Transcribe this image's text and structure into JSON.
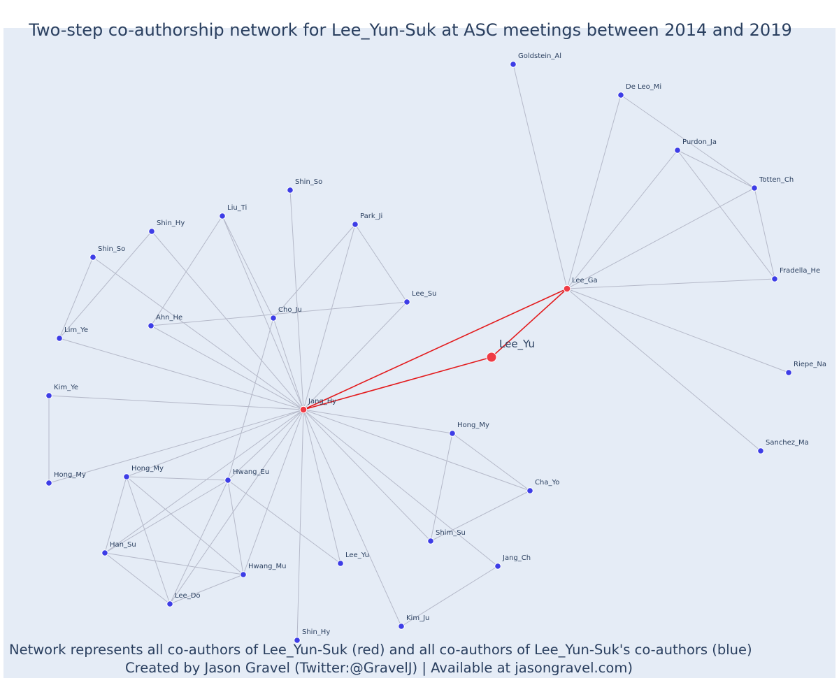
{
  "title": "Two-step co-authorship network for Lee_Yun-Suk at ASC meetings between 2014 and 2019",
  "footer": {
    "line1": "Network represents all co-authors of Lee_Yun-Suk (red) and all co-authors of Lee_Yun-Suk's co-authors (blue)",
    "line2": "Created by Jason Gravel (Twitter:@GravelJ) | Available at jasongravel.com)"
  },
  "colors": {
    "plot_background": "#e5ecf6",
    "text": "#2a3f5f",
    "first_degree_node": "#ef3b45",
    "second_degree_node": "#3d3de6",
    "ego_edge": "#e31a1c",
    "edge": "#b5b9c9"
  },
  "nodes": [
    {
      "id": "center",
      "label": "Lee_Yu",
      "kind": "center"
    },
    {
      "id": "jang_hy",
      "label": "Jang_Hy",
      "kind": "first"
    },
    {
      "id": "lee_ga",
      "label": "Lee_Ga",
      "kind": "first"
    },
    {
      "id": "goldstein_al",
      "label": "Goldstein_Al",
      "kind": "second"
    },
    {
      "id": "deleo_mi",
      "label": "De Leo_Mi",
      "kind": "second"
    },
    {
      "id": "purdon_ja",
      "label": "Purdon_Ja",
      "kind": "second"
    },
    {
      "id": "totten_ch",
      "label": "Totten_Ch",
      "kind": "second"
    },
    {
      "id": "fradella_he",
      "label": "Fradella_He",
      "kind": "second"
    },
    {
      "id": "riepe_na",
      "label": "Riepe_Na",
      "kind": "second"
    },
    {
      "id": "sanchez_ma",
      "label": "Sanchez_Ma",
      "kind": "second"
    },
    {
      "id": "shin_so_top",
      "label": "Shin_So",
      "kind": "second"
    },
    {
      "id": "liu_ti",
      "label": "Liu_Ti",
      "kind": "second"
    },
    {
      "id": "park_ji",
      "label": "Park_Ji",
      "kind": "second"
    },
    {
      "id": "shin_hy_top",
      "label": "Shin_Hy",
      "kind": "second"
    },
    {
      "id": "shin_so_left",
      "label": "Shin_So",
      "kind": "second"
    },
    {
      "id": "cho_ju",
      "label": "Cho_Ju",
      "kind": "second"
    },
    {
      "id": "lee_su",
      "label": "Lee_Su",
      "kind": "second"
    },
    {
      "id": "ahn_he",
      "label": "Ahn_He",
      "kind": "second"
    },
    {
      "id": "lim_ye",
      "label": "Lim_Ye",
      "kind": "second"
    },
    {
      "id": "kim_ye",
      "label": "Kim_Ye",
      "kind": "second"
    },
    {
      "id": "hong_my_left",
      "label": "Hong_My",
      "kind": "second"
    },
    {
      "id": "hong_my_mid",
      "label": "Hong_My",
      "kind": "second"
    },
    {
      "id": "hwang_eu",
      "label": "Hwang_Eu",
      "kind": "second"
    },
    {
      "id": "han_su",
      "label": "Han_Su",
      "kind": "second"
    },
    {
      "id": "hwang_mu",
      "label": "Hwang_Mu",
      "kind": "second"
    },
    {
      "id": "lee_do",
      "label": "Lee_Do",
      "kind": "second"
    },
    {
      "id": "shin_hy_bottom",
      "label": "Shin_Hy",
      "kind": "second"
    },
    {
      "id": "lee_yu_small",
      "label": "Lee_Yu",
      "kind": "second"
    },
    {
      "id": "kim_ju",
      "label": "Kim_Ju",
      "kind": "second"
    },
    {
      "id": "jang_ch",
      "label": "Jang_Ch",
      "kind": "second"
    },
    {
      "id": "shim_su",
      "label": "Shim_Su",
      "kind": "second"
    },
    {
      "id": "hong_my_right",
      "label": "Hong_My",
      "kind": "second"
    },
    {
      "id": "cha_yo",
      "label": "Cha_Yo",
      "kind": "second"
    }
  ],
  "edges": [
    [
      "center",
      "jang_hy",
      "ego"
    ],
    [
      "center",
      "lee_ga",
      "ego"
    ],
    [
      "jang_hy",
      "lee_ga",
      "ego"
    ],
    [
      "lee_ga",
      "goldstein_al"
    ],
    [
      "lee_ga",
      "deleo_mi"
    ],
    [
      "lee_ga",
      "purdon_ja"
    ],
    [
      "lee_ga",
      "totten_ch"
    ],
    [
      "lee_ga",
      "fradella_he"
    ],
    [
      "lee_ga",
      "riepe_na"
    ],
    [
      "lee_ga",
      "sanchez_ma"
    ],
    [
      "deleo_mi",
      "totten_ch"
    ],
    [
      "purdon_ja",
      "totten_ch"
    ],
    [
      "purdon_ja",
      "fradella_he"
    ],
    [
      "totten_ch",
      "fradella_he"
    ],
    [
      "jang_hy",
      "shin_so_top"
    ],
    [
      "jang_hy",
      "liu_ti"
    ],
    [
      "jang_hy",
      "park_ji"
    ],
    [
      "jang_hy",
      "shin_hy_top"
    ],
    [
      "jang_hy",
      "shin_so_left"
    ],
    [
      "jang_hy",
      "cho_ju"
    ],
    [
      "jang_hy",
      "lee_su"
    ],
    [
      "jang_hy",
      "ahn_he"
    ],
    [
      "jang_hy",
      "lim_ye"
    ],
    [
      "jang_hy",
      "kim_ye"
    ],
    [
      "jang_hy",
      "hong_my_left"
    ],
    [
      "jang_hy",
      "hong_my_mid"
    ],
    [
      "jang_hy",
      "hwang_eu"
    ],
    [
      "jang_hy",
      "han_su"
    ],
    [
      "jang_hy",
      "hwang_mu"
    ],
    [
      "jang_hy",
      "lee_do"
    ],
    [
      "jang_hy",
      "shin_hy_bottom"
    ],
    [
      "jang_hy",
      "lee_yu_small"
    ],
    [
      "jang_hy",
      "kim_ju"
    ],
    [
      "jang_hy",
      "jang_ch"
    ],
    [
      "jang_hy",
      "shim_su"
    ],
    [
      "jang_hy",
      "hong_my_right"
    ],
    [
      "jang_hy",
      "cha_yo"
    ],
    [
      "liu_ti",
      "cho_ju"
    ],
    [
      "liu_ti",
      "ahn_he"
    ],
    [
      "park_ji",
      "cho_ju"
    ],
    [
      "park_ji",
      "lee_su"
    ],
    [
      "ahn_he",
      "lee_su"
    ],
    [
      "shin_hy_top",
      "lim_ye"
    ],
    [
      "shin_so_left",
      "lim_ye"
    ],
    [
      "cho_ju",
      "hwang_eu"
    ],
    [
      "kim_ye",
      "hong_my_left"
    ],
    [
      "hong_my_mid",
      "hwang_eu"
    ],
    [
      "hong_my_mid",
      "han_su"
    ],
    [
      "hong_my_mid",
      "hwang_mu"
    ],
    [
      "hong_my_mid",
      "lee_do"
    ],
    [
      "hwang_eu",
      "han_su"
    ],
    [
      "hwang_eu",
      "hwang_mu"
    ],
    [
      "hwang_eu",
      "lee_do"
    ],
    [
      "hwang_eu",
      "lee_yu_small"
    ],
    [
      "han_su",
      "hwang_mu"
    ],
    [
      "han_su",
      "lee_do"
    ],
    [
      "hwang_mu",
      "lee_do"
    ],
    [
      "kim_ju",
      "jang_ch"
    ],
    [
      "hong_my_right",
      "shim_su"
    ],
    [
      "hong_my_right",
      "cha_yo"
    ],
    [
      "shim_su",
      "cha_yo"
    ]
  ]
}
